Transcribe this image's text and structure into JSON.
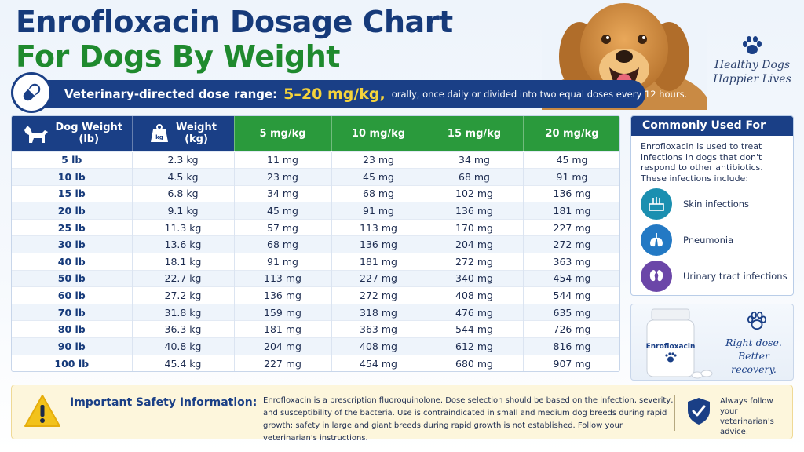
{
  "header": {
    "title_line1": "Enrofloxacin Dosage Chart",
    "title_line2": "For Dogs By Weight",
    "tagline_line1": "Healthy Dogs",
    "tagline_line2": "Happier Lives"
  },
  "dose_banner": {
    "label": "Veterinary-directed dose range:",
    "range": "5–20 mg/kg,",
    "description": "orally, once daily or divided into two equal doses every 12 hours."
  },
  "table": {
    "headers": {
      "weight_lb_line1": "Dog Weight",
      "weight_lb_line2": "(lb)",
      "weight_kg_line1": "Weight",
      "weight_kg_line2": "(kg)",
      "kg_badge": "kg",
      "dose5": "5 mg/kg",
      "dose10": "10 mg/kg",
      "dose15": "15 mg/kg",
      "dose20": "20 mg/kg"
    },
    "rows": [
      [
        "5 lb",
        "2.3 kg",
        "11 mg",
        "23 mg",
        "34 mg",
        "45 mg"
      ],
      [
        "10 lb",
        "4.5 kg",
        "23 mg",
        "45 mg",
        "68 mg",
        "91 mg"
      ],
      [
        "15 lb",
        "6.8 kg",
        "34 mg",
        "68 mg",
        "102 mg",
        "136 mg"
      ],
      [
        "20 lb",
        "9.1 kg",
        "45 mg",
        "91 mg",
        "136 mg",
        "181 mg"
      ],
      [
        "25 lb",
        "11.3 kg",
        "57 mg",
        "113 mg",
        "170 mg",
        "227 mg"
      ],
      [
        "30 lb",
        "13.6 kg",
        "68 mg",
        "136 mg",
        "204 mg",
        "272 mg"
      ],
      [
        "40 lb",
        "18.1 kg",
        "91 mg",
        "181 mg",
        "272 mg",
        "363 mg"
      ],
      [
        "50 lb",
        "22.7 kg",
        "113 mg",
        "227 mg",
        "340 mg",
        "454 mg"
      ],
      [
        "60 lb",
        "27.2 kg",
        "136 mg",
        "272 mg",
        "408 mg",
        "544 mg"
      ],
      [
        "70 lb",
        "31.8 kg",
        "159 mg",
        "318 mg",
        "476 mg",
        "635 mg"
      ],
      [
        "80 lb",
        "36.3 kg",
        "181 mg",
        "363 mg",
        "544 mg",
        "726 mg"
      ],
      [
        "90 lb",
        "40.8 kg",
        "204 mg",
        "408 mg",
        "612 mg",
        "816 mg"
      ],
      [
        "100 lb",
        "45.4 kg",
        "227 mg",
        "454 mg",
        "680 mg",
        "907 mg"
      ]
    ]
  },
  "uses": {
    "heading": "Commonly Used For",
    "intro": "Enrofloxacin is used to treat infections in dogs that don't respond to other antibiotics. These infections include:",
    "items": [
      {
        "label": "Skin infections",
        "icon": "skin-icon",
        "color": "#1b8fb0"
      },
      {
        "label": "Pneumonia",
        "icon": "lungs-icon",
        "color": "#2379c4"
      },
      {
        "label": "Urinary tract infections",
        "icon": "kidney-icon",
        "color": "#6b46a8"
      }
    ]
  },
  "recovery": {
    "bottle_label": "Enrofloxacin",
    "line1": "Right dose.",
    "line2": "Better recovery."
  },
  "safety": {
    "title": "Important Safety Information:",
    "body": "Enrofloxacin is a prescription fluoroquinolone. Dose selection should be based on the infection, severity, and susceptibility of the bacteria. Use is contraindicated in small and medium dog breeds during rapid growth; safety in large and giant breeds during rapid growth is not established. Follow your veterinarian's instructions.",
    "follow_line1": "Always follow",
    "follow_line2": "your veterinarian's",
    "follow_line3": "advice."
  },
  "colors": {
    "navy": "#1a3f86",
    "green": "#2a9a3c",
    "accent_yellow": "#f5d33b",
    "warning_bg": "#fdf6dc"
  }
}
